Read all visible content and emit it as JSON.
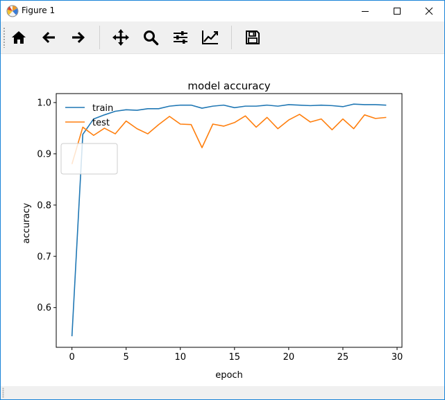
{
  "window": {
    "title": "Figure 1",
    "controls": [
      "minimize",
      "maximize",
      "close"
    ]
  },
  "toolbar": {
    "buttons": [
      {
        "name": "home",
        "icon": "home-icon"
      },
      {
        "name": "back",
        "icon": "arrow-left-icon"
      },
      {
        "name": "forward",
        "icon": "arrow-right-icon"
      },
      {
        "name": "pan",
        "icon": "move-icon"
      },
      {
        "name": "zoom",
        "icon": "magnifier-icon"
      },
      {
        "name": "configure-subplots",
        "icon": "sliders-icon"
      },
      {
        "name": "edit-axis",
        "icon": "line-chart-icon"
      },
      {
        "name": "save",
        "icon": "floppy-disk-icon"
      }
    ]
  },
  "colors": {
    "train": "#1f77b4",
    "test": "#ff7f0e",
    "window_border": "#1883d7",
    "toolbar_bg": "#f0f0f0"
  },
  "chart_data": {
    "type": "line",
    "title": "model accuracy",
    "xlabel": "epoch",
    "ylabel": "accuracy",
    "xlim": [
      -1.45,
      30.45
    ],
    "ylim": [
      0.5225,
      1.0175
    ],
    "xticks": [
      0,
      5,
      10,
      15,
      20,
      25,
      30
    ],
    "yticks": [
      0.6,
      0.7,
      0.8,
      0.9,
      1.0
    ],
    "ytick_labels": [
      "0.6",
      "0.7",
      "0.8",
      "0.9",
      "1.0"
    ],
    "legend": {
      "position": "upper left"
    },
    "grid": false,
    "x": [
      0,
      1,
      2,
      3,
      4,
      5,
      6,
      7,
      8,
      9,
      10,
      11,
      12,
      13,
      14,
      15,
      16,
      17,
      18,
      19,
      20,
      21,
      22,
      23,
      24,
      25,
      26,
      27,
      28,
      29
    ],
    "series": [
      {
        "name": "train",
        "color": "#1f77b4",
        "values": [
          0.544,
          0.938,
          0.968,
          0.976,
          0.983,
          0.986,
          0.985,
          0.988,
          0.988,
          0.993,
          0.995,
          0.995,
          0.989,
          0.993,
          0.995,
          0.99,
          0.993,
          0.993,
          0.995,
          0.993,
          0.996,
          0.995,
          0.994,
          0.995,
          0.994,
          0.992,
          0.997,
          0.996,
          0.996,
          0.995
        ]
      },
      {
        "name": "test",
        "color": "#ff7f0e",
        "values": [
          0.88,
          0.952,
          0.936,
          0.95,
          0.939,
          0.964,
          0.949,
          0.939,
          0.957,
          0.973,
          0.958,
          0.957,
          0.912,
          0.958,
          0.954,
          0.961,
          0.974,
          0.952,
          0.971,
          0.949,
          0.966,
          0.977,
          0.962,
          0.968,
          0.947,
          0.968,
          0.949,
          0.976,
          0.969,
          0.971
        ]
      }
    ]
  }
}
